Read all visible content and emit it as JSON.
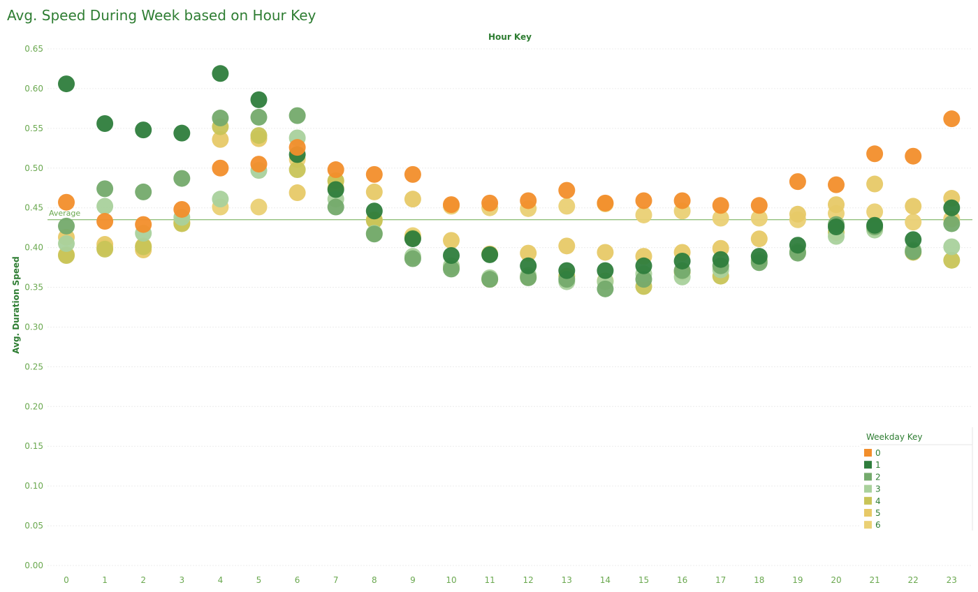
{
  "chart_data": {
    "type": "scatter",
    "title": "Avg. Speed During Week based on Hour Key",
    "x_header": "Hour Key",
    "xlabel": "Hour Key",
    "ylabel": "Avg. Duration Speed",
    "categories": [
      "0",
      "1",
      "2",
      "3",
      "4",
      "5",
      "6",
      "7",
      "8",
      "9",
      "10",
      "11",
      "12",
      "13",
      "14",
      "15",
      "16",
      "17",
      "18",
      "19",
      "20",
      "21",
      "22",
      "23"
    ],
    "yticks": [
      "0.00",
      "0.05",
      "0.10",
      "0.15",
      "0.20",
      "0.25",
      "0.30",
      "0.35",
      "0.40",
      "0.45",
      "0.50",
      "0.55",
      "0.60",
      "0.65"
    ],
    "ylim": [
      0,
      0.65
    ],
    "grid": true,
    "reference_line": {
      "label": "Average",
      "value": 0.435,
      "color": "#6aa84f"
    },
    "legend": {
      "title": "Weekday Key",
      "position": "bottom-right"
    },
    "series": [
      {
        "name": "0",
        "color": "#f28e2b",
        "values": [
          0.457,
          0.433,
          0.429,
          0.448,
          0.5,
          0.505,
          0.526,
          0.498,
          0.492,
          0.492,
          0.454,
          0.456,
          0.459,
          0.472,
          0.456,
          0.459,
          0.459,
          0.453,
          0.453,
          0.483,
          0.479,
          0.518,
          0.515,
          0.562
        ]
      },
      {
        "name": "1",
        "color": "#2e7d3c",
        "values": [
          0.606,
          0.556,
          0.548,
          0.544,
          0.619,
          0.586,
          0.517,
          0.473,
          0.446,
          0.411,
          0.39,
          0.391,
          0.377,
          0.371,
          0.371,
          0.377,
          0.383,
          0.385,
          0.389,
          0.403,
          0.426,
          0.428,
          0.41,
          0.45
        ]
      },
      {
        "name": "2",
        "color": "#74aa6c",
        "values": [
          0.427,
          0.474,
          0.47,
          0.487,
          0.563,
          0.564,
          0.566,
          0.451,
          0.417,
          0.386,
          0.373,
          0.36,
          0.362,
          0.36,
          0.348,
          0.36,
          0.371,
          0.377,
          0.381,
          0.393,
          0.429,
          0.426,
          0.395,
          0.43
        ]
      },
      {
        "name": "3",
        "color": "#a9d19c",
        "values": [
          0.405,
          0.452,
          0.418,
          0.438,
          0.461,
          0.497,
          0.538,
          0.461,
          0.418,
          0.389,
          0.377,
          0.362,
          0.365,
          0.357,
          0.357,
          0.367,
          0.363,
          0.372,
          0.384,
          0.395,
          0.414,
          0.422,
          0.397,
          0.401
        ]
      },
      {
        "name": "4",
        "color": "#c8c457",
        "values": [
          0.39,
          0.398,
          0.401,
          0.43,
          0.552,
          0.541,
          0.498,
          0.484,
          0.434,
          0.412,
          0.376,
          0.36,
          0.363,
          0.364,
          0.358,
          0.351,
          0.369,
          0.364,
          0.384,
          0.395,
          0.419,
          0.425,
          0.394,
          0.384
        ]
      },
      {
        "name": "5",
        "color": "#e7c967",
        "values": [
          0.413,
          0.404,
          0.397,
          0.432,
          0.536,
          0.537,
          0.469,
          0.484,
          0.47,
          0.461,
          0.409,
          0.392,
          0.393,
          0.402,
          0.394,
          0.389,
          0.394,
          0.399,
          0.411,
          0.442,
          0.454,
          0.48,
          0.452,
          0.462
        ]
      },
      {
        "name": "6",
        "color": "#ead074",
        "values": [
          0.391,
          0.4,
          0.402,
          0.431,
          0.451,
          0.451,
          0.511,
          0.475,
          0.435,
          0.415,
          0.452,
          0.45,
          0.449,
          0.452,
          0.455,
          0.441,
          0.446,
          0.437,
          0.437,
          0.435,
          0.443,
          0.445,
          0.432,
          0.436
        ]
      }
    ]
  }
}
